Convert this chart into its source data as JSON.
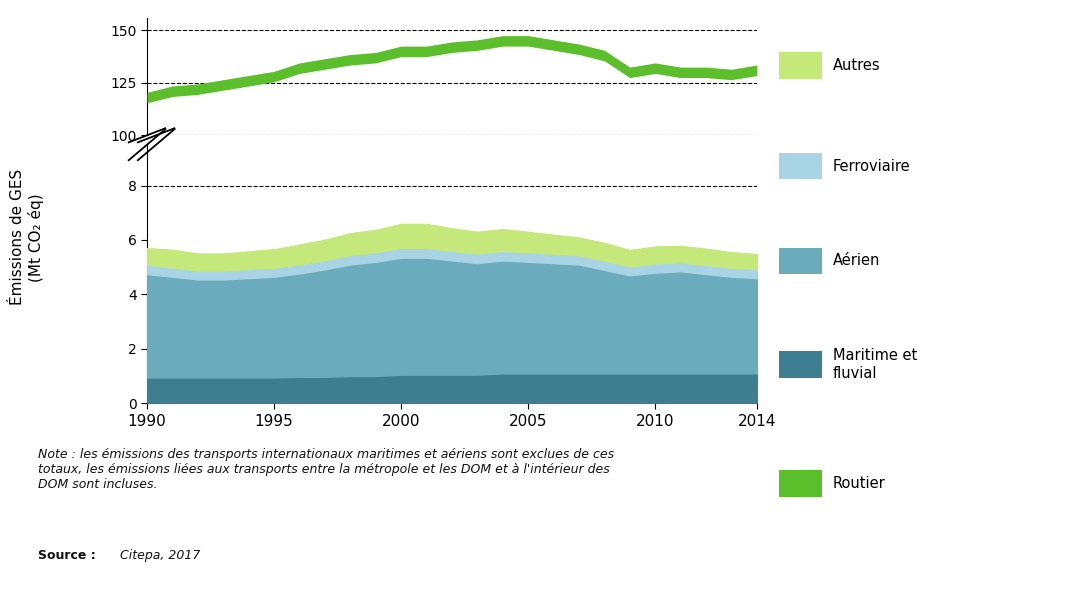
{
  "years": [
    1990,
    1991,
    1992,
    1993,
    1994,
    1995,
    1996,
    1997,
    1998,
    1999,
    2000,
    2001,
    2002,
    2003,
    2004,
    2005,
    2006,
    2007,
    2008,
    2009,
    2010,
    2011,
    2012,
    2013,
    2014
  ],
  "routier": [
    118,
    121,
    122,
    124,
    126,
    128,
    132,
    134,
    136,
    137,
    140,
    140,
    142,
    143,
    145,
    145,
    143,
    141,
    138,
    130,
    132,
    130,
    130,
    129,
    131
  ],
  "autres": [
    0.6,
    0.65,
    0.62,
    0.62,
    0.65,
    0.68,
    0.72,
    0.75,
    0.8,
    0.82,
    0.88,
    0.88,
    0.83,
    0.8,
    0.8,
    0.75,
    0.7,
    0.65,
    0.65,
    0.6,
    0.62,
    0.6,
    0.6,
    0.57,
    0.55
  ],
  "ferroviaire": [
    0.35,
    0.34,
    0.33,
    0.33,
    0.33,
    0.33,
    0.34,
    0.34,
    0.35,
    0.35,
    0.36,
    0.36,
    0.35,
    0.35,
    0.35,
    0.35,
    0.34,
    0.34,
    0.34,
    0.33,
    0.34,
    0.33,
    0.33,
    0.33,
    0.33
  ],
  "aerien": [
    3.8,
    3.7,
    3.6,
    3.6,
    3.65,
    3.7,
    3.8,
    3.95,
    4.1,
    4.2,
    4.3,
    4.3,
    4.2,
    4.1,
    4.15,
    4.1,
    4.05,
    4.0,
    3.8,
    3.6,
    3.7,
    3.75,
    3.65,
    3.55,
    3.5
  ],
  "maritime": [
    0.95,
    0.95,
    0.95,
    0.95,
    0.95,
    0.95,
    0.97,
    0.97,
    1.0,
    1.0,
    1.05,
    1.05,
    1.05,
    1.05,
    1.1,
    1.1,
    1.1,
    1.1,
    1.1,
    1.1,
    1.1,
    1.1,
    1.1,
    1.1,
    1.1
  ],
  "color_routier": "#5abf2a",
  "color_autres": "#c5e87a",
  "color_ferroviaire": "#a8d4e5",
  "color_aerien": "#6aacbc",
  "color_maritime": "#3d7f90",
  "upper_yticks": [
    100,
    125,
    150
  ],
  "lower_yticks": [
    0,
    2,
    4,
    6,
    8
  ],
  "xlabel_years": [
    1990,
    1995,
    2000,
    2005,
    2010,
    2014
  ]
}
